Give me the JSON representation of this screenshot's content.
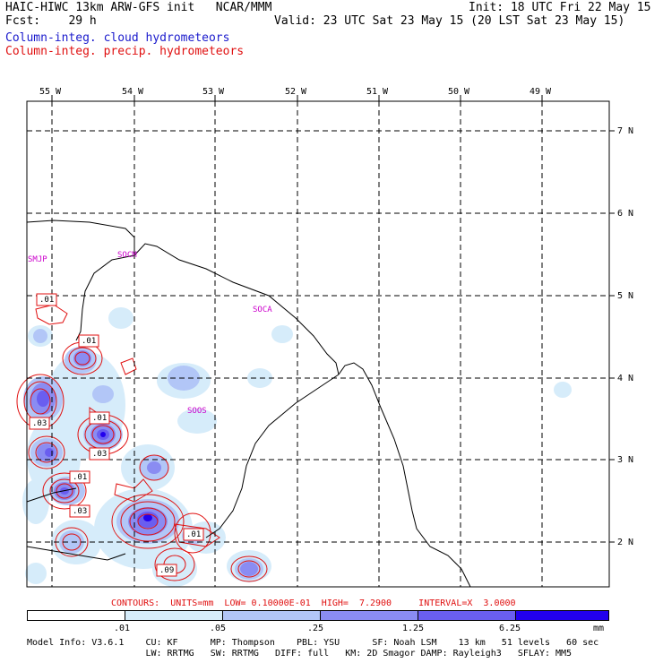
{
  "header": {
    "title": "HAIC-HIWC 13km ARW-GFS init   NCAR/MMM",
    "init": "Init: 18 UTC Fri 22 May 15",
    "fcst": "Fcst:    29 h",
    "valid": "Valid: 23 UTC Sat 23 May 15 (20 LST Sat 23 May 15)",
    "legend_cloud": "Column-integ. cloud hydrometeors",
    "legend_precip": "Column-integ. precip. hydrometeors"
  },
  "colors": {
    "cloud_text": "#1a1acc",
    "precip_text": "#e01010",
    "station_text": "#cc00cc",
    "contour": "#e01010",
    "shade_levels": [
      "#ffffff",
      "#d6ecfa",
      "#b2c6f7",
      "#8a8cf2",
      "#6a5ef0",
      "#2200ee"
    ]
  },
  "map": {
    "lon_labels": [
      "55 W",
      "54 W",
      "53 W",
      "52 W",
      "51 W",
      "50 W",
      "49 W"
    ],
    "lat_labels": [
      "7 N",
      "6 N",
      "5 N",
      "4 N",
      "3 N",
      "2 N"
    ],
    "stations": [
      "SMJP",
      "SOCM",
      "SOCA",
      "SOOS"
    ],
    "contour_labels": [
      ".01",
      ".01",
      ".03",
      ".01",
      ".03",
      ".01",
      ".03",
      ".01",
      ".09"
    ]
  },
  "contour_info": {
    "line": "CONTOURS:  UNITS=mm  LOW= 0.10000E-01  HIGH=  7.2900     INTERVAL=X  3.0000"
  },
  "colorbar": {
    "labels": [
      ".01",
      ".05",
      ".25",
      "1.25",
      "6.25"
    ],
    "units": "mm"
  },
  "footer": {
    "line1": "Model Info: V3.6.1    CU: KF      MP: Thompson    PBL: YSU      SF: Noah LSM    13 km   51 levels   60 sec",
    "line2": "                      LW: RRTMG   SW: RRTMG   DIFF: full   KM: 2D Smagor DAMP: Rayleigh3   SFLAY: MM5"
  }
}
